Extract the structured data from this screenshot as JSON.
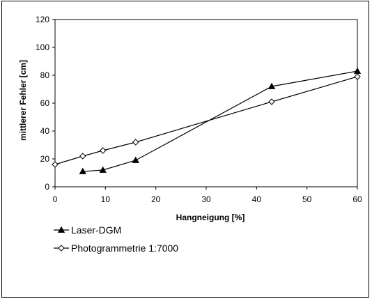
{
  "chart_data": {
    "type": "line",
    "title": "",
    "xlabel": "Hangneigung [%]",
    "ylabel": "mittlerer Fehler [cm]",
    "xlim": [
      0,
      60
    ],
    "ylim": [
      0,
      120
    ],
    "xticks": [
      0,
      10,
      20,
      30,
      40,
      50,
      60
    ],
    "yticks": [
      0,
      20,
      40,
      60,
      80,
      100,
      120
    ],
    "grid": false,
    "legend_position": "bottom-left",
    "series": [
      {
        "name": "Laser-DGM",
        "marker": "filled-triangle",
        "color": "#000000",
        "x": [
          5.5,
          9.5,
          16,
          43,
          60
        ],
        "y": [
          11,
          12,
          19,
          72,
          83
        ]
      },
      {
        "name": "Photogrammetrie 1:7000",
        "marker": "open-diamond",
        "color": "#000000",
        "x": [
          0,
          5.5,
          9.5,
          16,
          43,
          60
        ],
        "y": [
          16,
          22,
          26,
          32,
          61,
          79
        ]
      }
    ]
  }
}
